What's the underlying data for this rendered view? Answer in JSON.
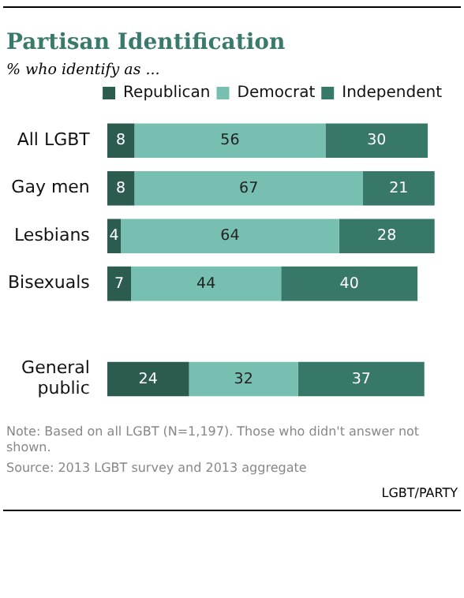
{
  "chart_data": {
    "type": "bar",
    "orientation": "horizontal",
    "stacked": true,
    "title": "Partisan Identification",
    "subtitle": "% who identify as ...",
    "categories": [
      "All LGBT",
      "Gay men",
      "Lesbians",
      "Bisexuals",
      null,
      "General public"
    ],
    "series": [
      {
        "name": "Republican",
        "color": "#2b5c4f",
        "values": [
          8,
          8,
          4,
          7,
          null,
          24
        ]
      },
      {
        "name": "Democrat",
        "color": "#77bfb0",
        "values": [
          56,
          67,
          64,
          44,
          null,
          32
        ]
      },
      {
        "name": "Independent",
        "color": "#387868",
        "values": [
          30,
          21,
          28,
          40,
          null,
          37
        ]
      }
    ],
    "tick_labels": "y",
    "legend": "top",
    "data_labels": true,
    "annotations": [
      "Note: Based on all LGBT (N=1,197). Those who didn't answer not shown.",
      "Source: 2013 LGBT survey and 2013 aggregate",
      "LGBT/PARTY"
    ]
  }
}
